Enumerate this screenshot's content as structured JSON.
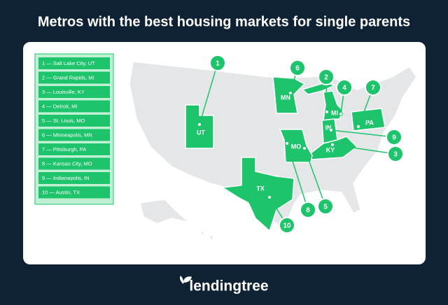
{
  "header": {
    "title": "Metros with the best housing markets for single parents"
  },
  "legend": {
    "items": [
      "1 — Salt Lake City, UT",
      "2 — Grand Rapids, MI",
      "3 — Louisville, KY",
      "4 — Detroit, MI",
      "5 — St. Louis, MO",
      "6 — Minneapolis, MN",
      "7 — Pittsburgh, PA",
      "8 — Kansas City, MO",
      "9 — Indianapolis, IN",
      "10 — Austin, TX"
    ]
  },
  "states": [
    "UT",
    "MN",
    "MI",
    "IN",
    "KY",
    "MO",
    "TX",
    "PA"
  ],
  "pins": [
    "1",
    "6",
    "2",
    "4",
    "7",
    "9",
    "3",
    "8",
    "5",
    "10"
  ],
  "footer": {
    "brand": "lendingtree"
  }
}
